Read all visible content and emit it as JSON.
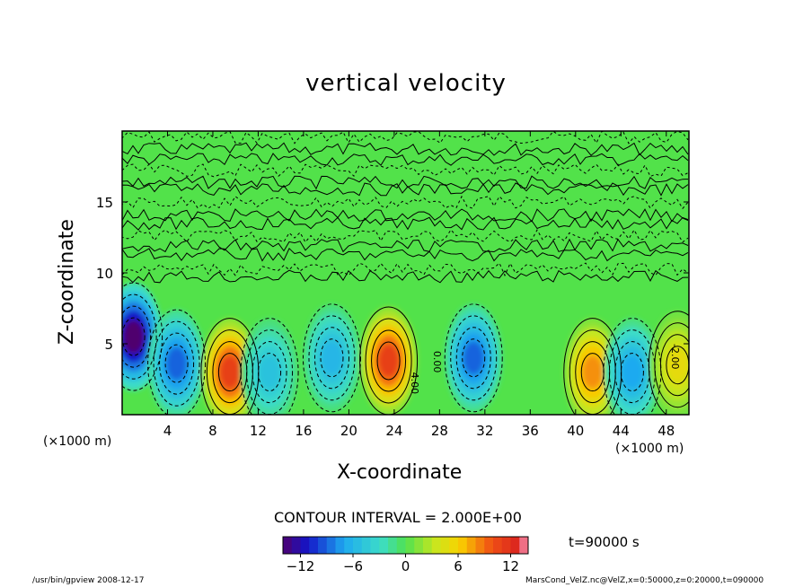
{
  "chart_data": {
    "type": "heatmap",
    "title": "vertical velocity",
    "xlabel": "X-coordinate",
    "ylabel": "Z-coordinate",
    "x_unit": "(×1000 m)",
    "y_unit": "(×1000 m)",
    "xlim": [
      0,
      50
    ],
    "ylim": [
      0,
      20
    ],
    "x_ticks": [
      "4",
      "8",
      "12",
      "16",
      "20",
      "24",
      "28",
      "32",
      "36",
      "40",
      "44",
      "48"
    ],
    "y_ticks": [
      "5",
      "10",
      "15"
    ],
    "contour_interval": "CONTOUR INTERVAL = 2.000E+00",
    "contour_labels": [
      "4.00",
      "0.00",
      "-2.00"
    ],
    "colorbar": {
      "min": -14,
      "max": 14,
      "ticks": [
        "−12",
        "−6",
        "0",
        "6",
        "12"
      ]
    },
    "time_label": "t=90000 s",
    "cells": [
      {
        "x": 1,
        "z": 5.5,
        "w": -14
      },
      {
        "x": 4.8,
        "z": 3.6,
        "w": -9
      },
      {
        "x": 9.5,
        "z": 3.0,
        "w": 11
      },
      {
        "x": 13.0,
        "z": 3.0,
        "w": -5
      },
      {
        "x": 18.5,
        "z": 4.0,
        "w": -6
      },
      {
        "x": 23.5,
        "z": 3.8,
        "w": 11
      },
      {
        "x": 31.0,
        "z": 4.0,
        "w": -9
      },
      {
        "x": 41.5,
        "z": 3.0,
        "w": 8
      },
      {
        "x": 45.0,
        "z": 3.0,
        "w": -7
      },
      {
        "x": 49.0,
        "z": 3.5,
        "w": 5
      }
    ]
  },
  "footer": {
    "left": "/usr/bin/gpview  2008-12-17",
    "right": "MarsCond_VelZ.nc@VelZ,x=0:50000,z=0:20000,t=090000"
  }
}
